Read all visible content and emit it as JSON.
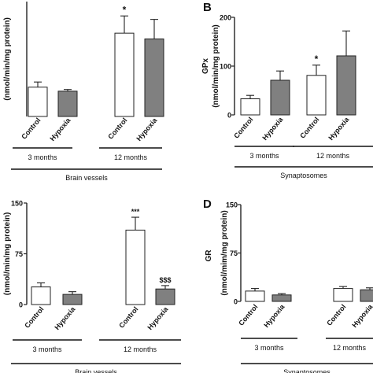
{
  "chart_data": [
    {
      "type": "bar",
      "panel_letter": "",
      "ylabel": "(nmol/min/mg protein)",
      "ylim": [
        0,
        200
      ],
      "show_yaxis_ticks": false,
      "categories": [
        "Control",
        "Hypoxia",
        "Control",
        "Hypoxia"
      ],
      "values": [
        51,
        44,
        145,
        135
      ],
      "errors": [
        9,
        3,
        30,
        34
      ],
      "annotations": [
        "",
        "",
        "*",
        ""
      ],
      "fills": [
        "#ffffff",
        "#808080",
        "#ffffff",
        "#808080"
      ],
      "groups": [
        "3 months",
        "12 months"
      ],
      "footer": "Brain vessels"
    },
    {
      "type": "bar",
      "panel_letter": "B",
      "ylabel": "(nmol/min/mg protein)",
      "ylabel_short": "GPx",
      "ylim": [
        0,
        200
      ],
      "yticks": [
        0,
        100,
        200
      ],
      "categories": [
        "Control",
        "Hypoxia",
        "Control",
        "Hypoxia"
      ],
      "values": [
        33,
        71,
        81,
        121
      ],
      "errors": [
        7,
        19,
        21,
        51
      ],
      "annotations": [
        "",
        "",
        "*",
        ""
      ],
      "fills": [
        "#ffffff",
        "#808080",
        "#ffffff",
        "#808080"
      ],
      "groups": [
        "3 months",
        "12 months"
      ],
      "footer": "Synaptosomes"
    },
    {
      "type": "bar",
      "panel_letter": "",
      "ylabel": "(nmol/min/mg protein)",
      "ylim": [
        0,
        150
      ],
      "yticks": [
        0,
        75,
        150
      ],
      "categories": [
        "Control",
        "Hypoxia",
        "Control",
        "Hypoxia"
      ],
      "values": [
        26,
        15,
        110,
        23
      ],
      "errors": [
        6,
        4,
        19,
        5
      ],
      "annotations": [
        "",
        "",
        "***",
        "$$$"
      ],
      "fills": [
        "#ffffff",
        "#808080",
        "#ffffff",
        "#808080"
      ],
      "groups": [
        "3 months",
        "12 months"
      ],
      "footer": "Brain vessels"
    },
    {
      "type": "bar",
      "panel_letter": "D",
      "ylabel": "(nmol/mim/mg protein)",
      "ylabel_short": "GR",
      "ylim": [
        0,
        150
      ],
      "yticks": [
        0,
        75,
        150
      ],
      "categories": [
        "Control",
        "Hypoxia",
        "Control",
        "Hypoxia"
      ],
      "values": [
        16,
        10,
        20,
        18
      ],
      "errors": [
        4,
        2,
        3,
        3
      ],
      "annotations": [
        "",
        "",
        "",
        ""
      ],
      "fills": [
        "#ffffff",
        "#808080",
        "#ffffff",
        "#808080"
      ],
      "groups": [
        "3 months",
        "12 months"
      ],
      "footer": "Synaptosomes"
    }
  ]
}
